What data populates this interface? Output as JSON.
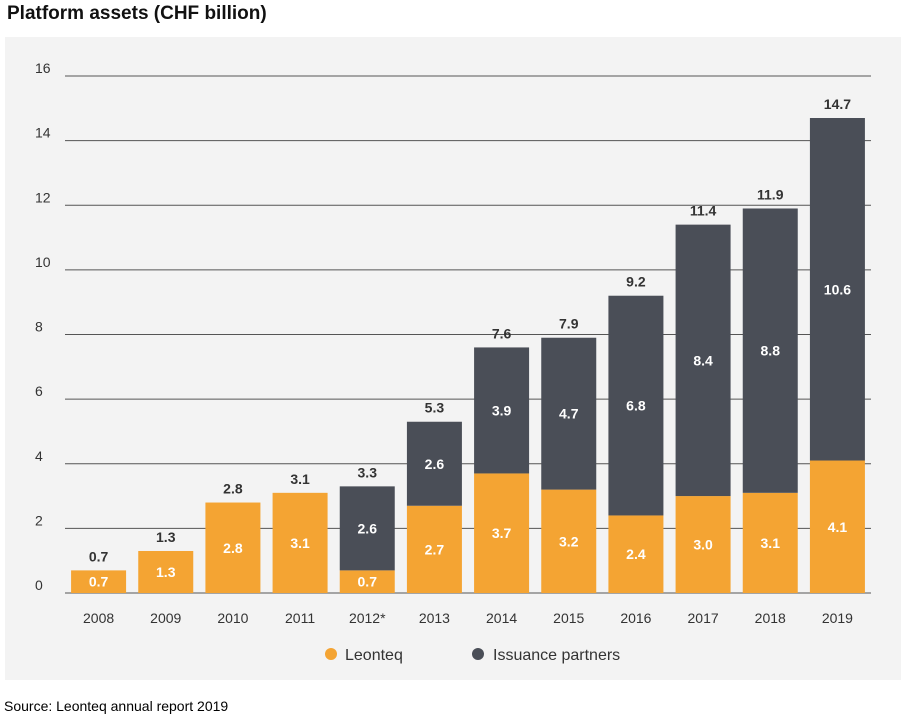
{
  "title": "Platform assets (CHF billion)",
  "source": "Source: Leonteq annual report 2019",
  "colors": {
    "leonteq": "#f4a433",
    "partners": "#4a4e57",
    "panel": "#f3f3f3",
    "grid": "#555555"
  },
  "chart_data": {
    "type": "bar",
    "stacked": true,
    "title": "Platform assets (CHF billion)",
    "categories": [
      "2008",
      "2009",
      "2010",
      "2011",
      "2012*",
      "2013",
      "2014",
      "2015",
      "2016",
      "2017",
      "2018",
      "2019"
    ],
    "series": [
      {
        "name": "Leonteq",
        "values": [
          0.7,
          1.3,
          2.8,
          3.1,
          0.7,
          2.7,
          3.7,
          3.2,
          2.4,
          3.0,
          3.1,
          4.1
        ]
      },
      {
        "name": "Issuance partners",
        "values": [
          0,
          0,
          0,
          0,
          2.6,
          2.6,
          3.9,
          4.7,
          6.8,
          8.4,
          8.8,
          10.6
        ]
      }
    ],
    "series_labels": [
      [
        "0.7",
        "1.3",
        "2.8",
        "3.1",
        "0.7",
        "2.7",
        "3.7",
        "3.2",
        "2.4",
        "3.0",
        "3.1",
        "4.1"
      ],
      [
        "",
        "",
        "",
        "",
        "2.6",
        "2.6",
        "3.9",
        "4.7",
        "6.8",
        "8.4",
        "8.8",
        "10.6"
      ]
    ],
    "totals": [
      0.7,
      1.3,
      2.8,
      3.1,
      3.3,
      5.3,
      7.6,
      7.9,
      9.2,
      11.4,
      11.9,
      14.7
    ],
    "total_labels": [
      "0.7",
      "1.3",
      "2.8",
      "3.1",
      "3.3",
      "5.3",
      "7.6",
      "7.9",
      "9.2",
      "11.4",
      "11.9",
      "14.7"
    ],
    "ylim": [
      0,
      16
    ],
    "yticks": [
      0,
      2,
      4,
      6,
      8,
      10,
      12,
      14,
      16
    ],
    "grid": true,
    "legend_position": "bottom-center",
    "xlabel": "",
    "ylabel": ""
  }
}
